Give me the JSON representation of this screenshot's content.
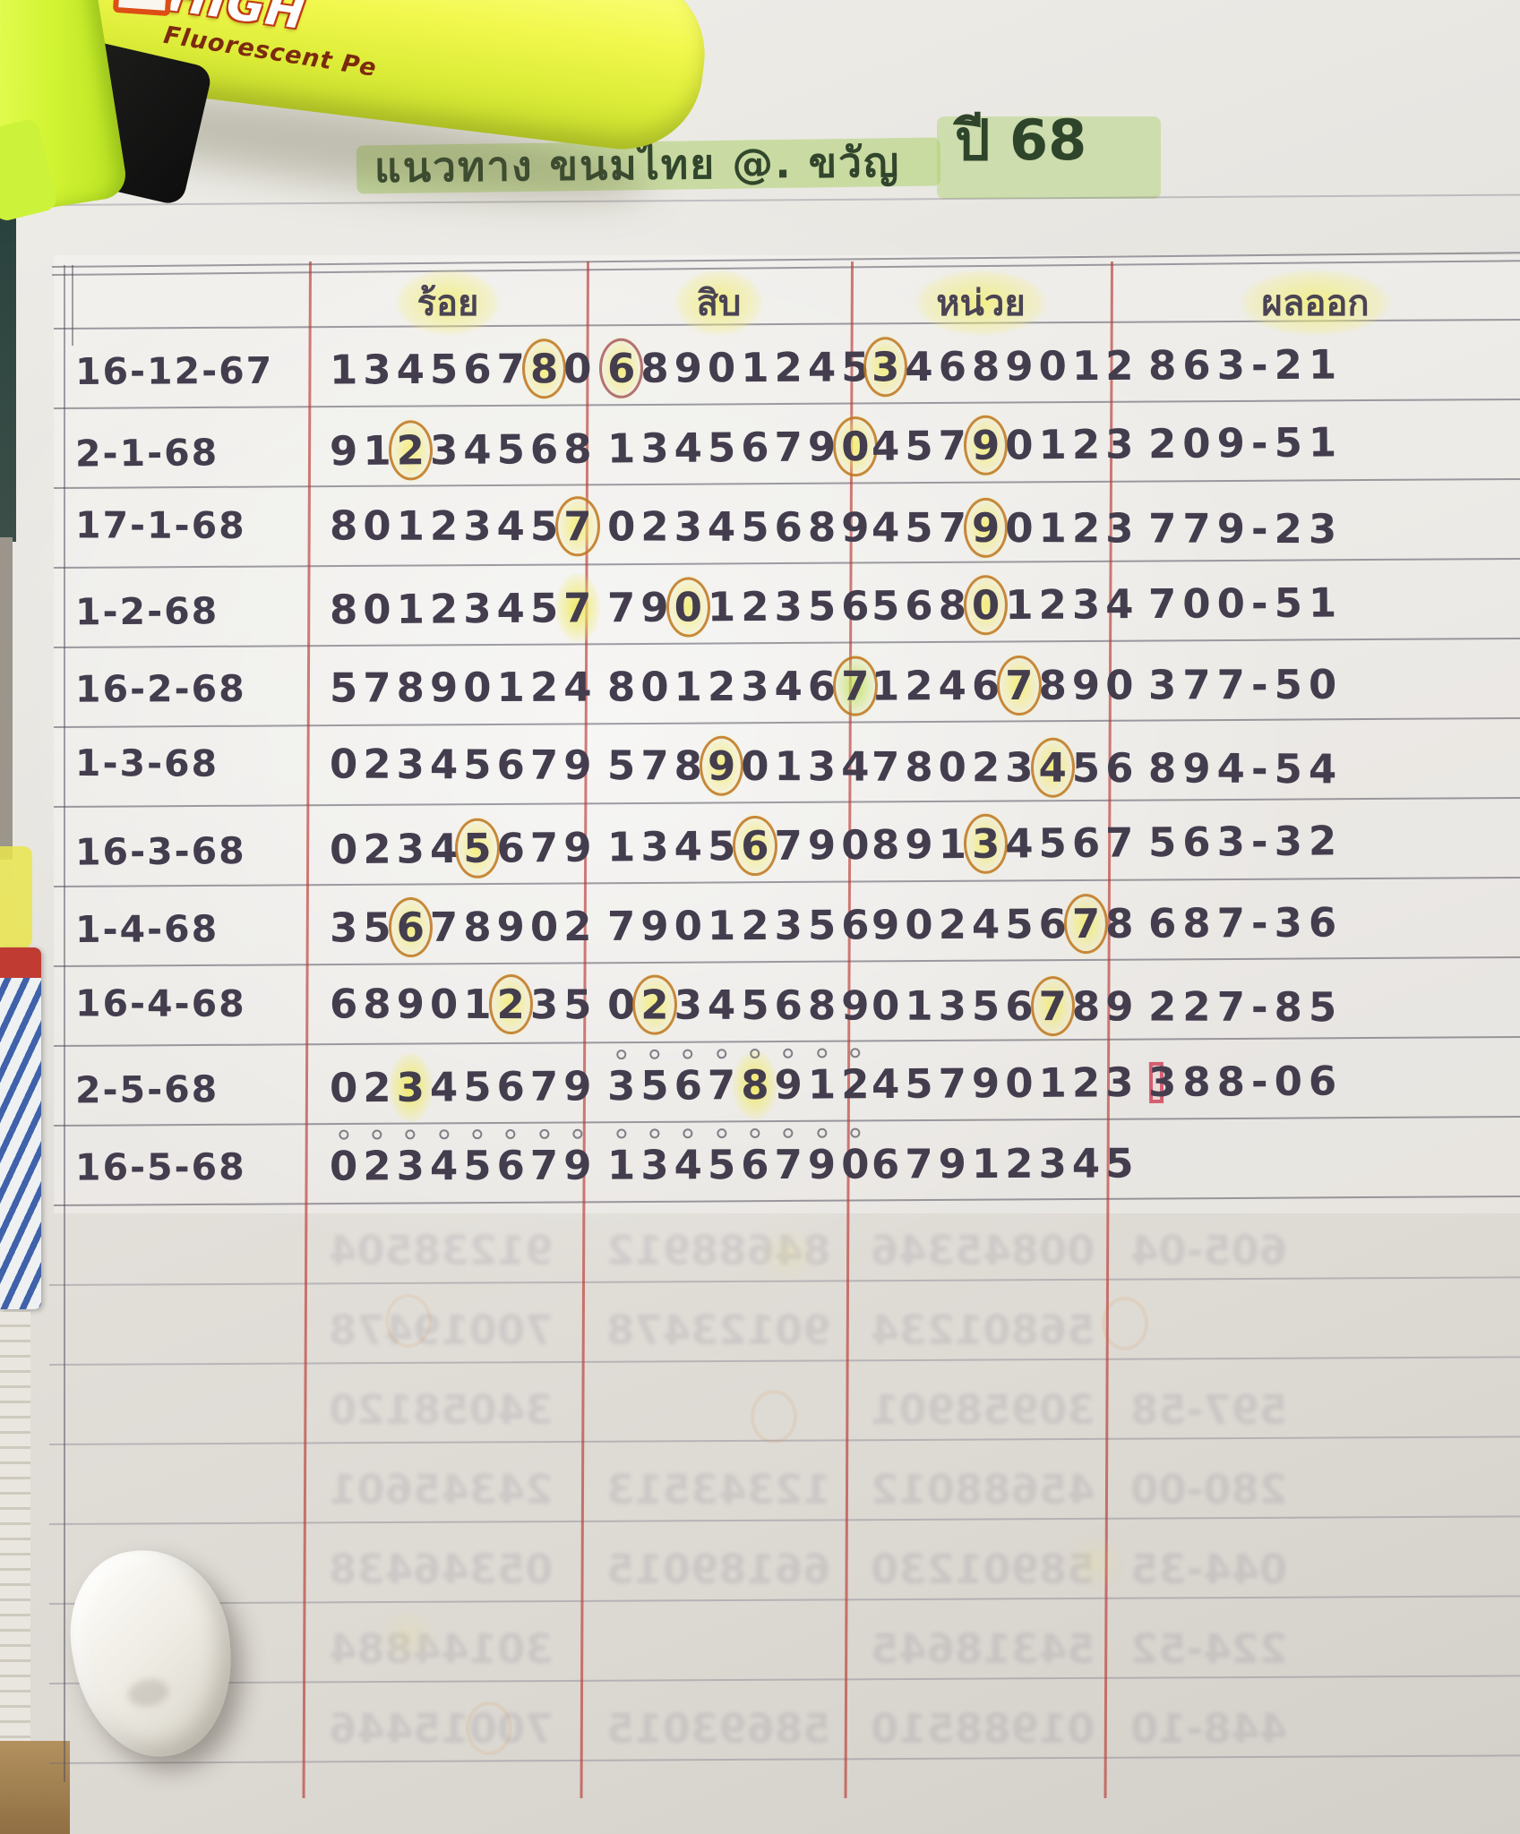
{
  "page": {
    "title": "แนวทาง ขนมไทย @. ขวัญ",
    "title_year": "ปี 68"
  },
  "pen": {
    "brand": "HIGH",
    "subtitle": "Fluorescent Pe"
  },
  "table": {
    "headers": {
      "date": "",
      "roy": "ร้อย",
      "sib": "สิบ",
      "nuay": "หน่วย",
      "result": "ผลออก"
    },
    "rows": [
      {
        "date": "16-12-67",
        "roy": {
          "text": "13456780",
          "circled": [
            6
          ]
        },
        "sib": {
          "text": "68901245",
          "circled": [
            0
          ],
          "red_ring": true
        },
        "nuay": {
          "text": "34689012",
          "circled": [
            0
          ]
        },
        "result": "863-21"
      },
      {
        "date": "2-1-68",
        "roy": {
          "text": "91234568",
          "circled": [
            2
          ]
        },
        "sib": {
          "text": "13456790",
          "circled": [
            7
          ]
        },
        "nuay": {
          "text": "45790123",
          "circled": [
            3
          ]
        },
        "result": "209-51"
      },
      {
        "date": "17-1-68",
        "roy": {
          "text": "80123457",
          "circled": [
            7
          ]
        },
        "sib": {
          "text": "02345689",
          "red_dot": true
        },
        "nuay": {
          "text": "45790123",
          "circled": [
            3
          ]
        },
        "result": "779-23"
      },
      {
        "date": "1-2-68",
        "roy": {
          "text": "80123457",
          "highlight": [
            7
          ]
        },
        "sib": {
          "text": "79012356",
          "circled": [
            2
          ]
        },
        "nuay": {
          "text": "56801234",
          "circled": [
            3
          ]
        },
        "result": "700-51"
      },
      {
        "date": "16-2-68",
        "roy": {
          "text": "57890124",
          "red_dot": true
        },
        "sib": {
          "text": "80123467",
          "circled": [
            7
          ],
          "green": true
        },
        "nuay": {
          "text": "12467890",
          "circled": [
            4
          ]
        },
        "result": "377-50"
      },
      {
        "date": "1-3-68",
        "roy": {
          "text": "02345679",
          "red_dot": true
        },
        "sib": {
          "text": "57890134",
          "circled": [
            3
          ]
        },
        "nuay": {
          "text": "78023456",
          "circled": [
            5
          ]
        },
        "result": "894-54"
      },
      {
        "date": "16-3-68",
        "roy": {
          "text": "02345679",
          "circled": [
            4
          ]
        },
        "sib": {
          "text": "13456790",
          "circled": [
            4
          ]
        },
        "nuay": {
          "text": "89134567",
          "circled": [
            3
          ]
        },
        "result": "563-32"
      },
      {
        "date": "1-4-68",
        "roy": {
          "text": "35678902",
          "circled": [
            2
          ]
        },
        "sib": {
          "text": "79012356",
          "red_dot": true
        },
        "nuay": {
          "text": "90245678",
          "circled": [
            6
          ]
        },
        "result": "687-36"
      },
      {
        "date": "16-4-68",
        "roy": {
          "text": "68901235",
          "circled": [
            5
          ]
        },
        "sib": {
          "text": "02345689",
          "circled": [
            1
          ]
        },
        "nuay": {
          "text": "01356789",
          "circled": [
            5
          ]
        },
        "result": "227-85"
      },
      {
        "date": "2-5-68",
        "roy": {
          "text": "02345679",
          "highlight": [
            2
          ]
        },
        "sib": {
          "text": "35678912",
          "highlight": [
            4
          ],
          "dots": true
        },
        "nuay": {
          "text": "45790123",
          "red_ring_dot": true
        },
        "result": "388-06"
      },
      {
        "date": "16-5-68",
        "roy": {
          "text": "02345679",
          "dots": true
        },
        "sib": {
          "text": "13456790",
          "dots": true
        },
        "nuay": {
          "text": "67912345"
        },
        "result": ""
      }
    ]
  },
  "bleed_through_rows": [
    [
      "",
      "91238504",
      "84688912",
      "00845346",
      "605-04"
    ],
    [
      "",
      "70019478",
      "90123478",
      "56801234",
      ""
    ],
    [
      "",
      "34058120",
      "",
      "30958901",
      "597-58"
    ],
    [
      "",
      "24345601",
      "12343513",
      "45688012",
      "280-00"
    ],
    [
      "",
      "05346438",
      "66189015",
      "58901230",
      "044-35"
    ],
    [
      "",
      "30144884",
      "",
      "54318645",
      "224-52"
    ],
    [
      "",
      "70015446",
      "58693015",
      "01988510",
      "448-10"
    ]
  ],
  "colors": {
    "ink": "#433d4e",
    "red_line": "#ba3a34",
    "red_dot": "#e53156",
    "circle_ring": "#be761c",
    "yellow_highlight": "#f2ee78",
    "green_highlight": "#add06c",
    "pen_body": "#f2f84e"
  }
}
